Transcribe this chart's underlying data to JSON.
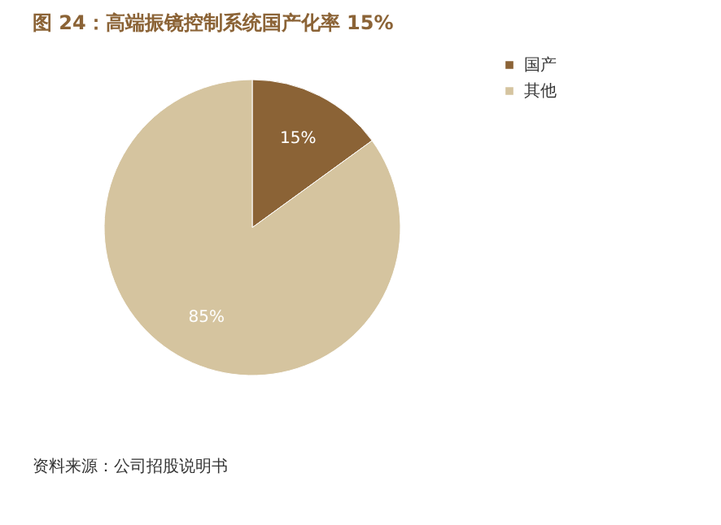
{
  "chart_data": {
    "type": "pie",
    "title": "图 24：高端振镜控制系统国产化率 15%",
    "categories": [
      "国产",
      "其他"
    ],
    "values": [
      15,
      85
    ],
    "colors": [
      "#8b6336",
      "#d5c49f"
    ],
    "value_labels": [
      "15%",
      "85%"
    ],
    "legend": "right",
    "annotations": [
      "资料来源：公司招股说明书"
    ]
  }
}
